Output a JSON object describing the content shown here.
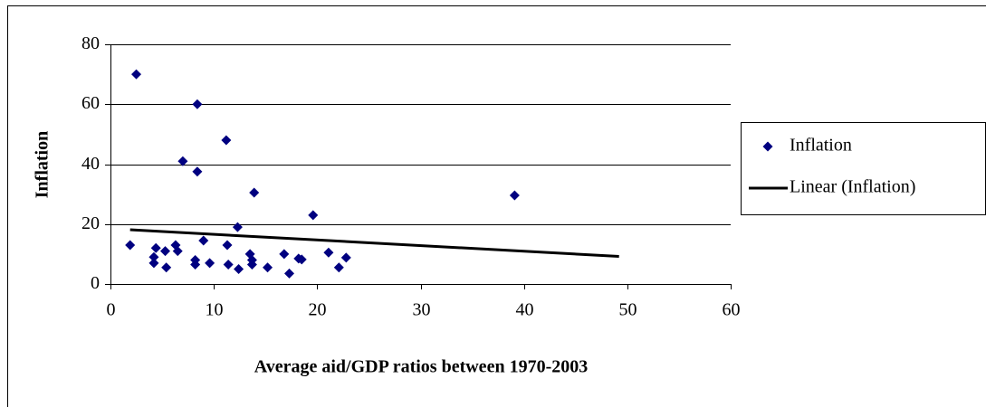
{
  "chart_data": {
    "type": "scatter",
    "x_label": "Average aid/GDP ratios between 1970-2003",
    "y_label": "Inflation",
    "xlim": [
      0,
      60
    ],
    "xticks": [
      0,
      10,
      20,
      30,
      40,
      50,
      60
    ],
    "ylim": [
      0,
      80
    ],
    "yticks": [
      0,
      20,
      40,
      60,
      80
    ],
    "grid": true,
    "legend": "right",
    "series": [
      {
        "name": "Inflation",
        "color": "#000080",
        "style": "marker",
        "x": [
          1.9,
          2.5,
          4.2,
          4.2,
          4.4,
          5.3,
          5.4,
          6.3,
          6.5,
          7.0,
          8.4,
          8.4,
          8.2,
          8.2,
          9.0,
          9.6,
          11.2,
          11.3,
          11.4,
          12.3,
          12.4,
          13.5,
          13.7,
          13.7,
          13.9,
          15.2,
          16.8,
          17.3,
          18.2,
          18.5,
          19.6,
          21.1,
          22.1,
          22.8,
          39.1
        ],
        "values": [
          13,
          70,
          9,
          7,
          12,
          11,
          5.5,
          13,
          11,
          41,
          60,
          37.5,
          8,
          6.5,
          14.5,
          7,
          48,
          13,
          6.5,
          19,
          5,
          10,
          8,
          6.5,
          30.5,
          5.5,
          10,
          3.5,
          8.5,
          8.2,
          23,
          10.5,
          5.5,
          8.8,
          29.6
        ]
      },
      {
        "name": "Linear (Inflation)",
        "color": "#000000",
        "style": "line",
        "x": [
          1.9,
          49.2
        ],
        "values": [
          18.1,
          9.2
        ]
      }
    ]
  }
}
